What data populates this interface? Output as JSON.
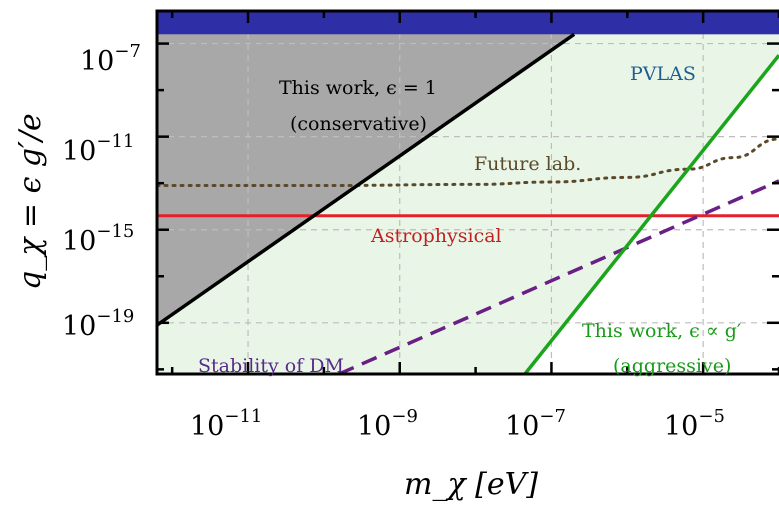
{
  "chart_data": {
    "type": "area",
    "xlabel": "m_χ [eV]",
    "ylabel": "q_χ = ϵ g′/e",
    "x_scale": "log",
    "y_scale": "log",
    "xlim_log10": [
      -12.2,
      -4.0
    ],
    "ylim_log10": [
      -21.2,
      -5.6
    ],
    "grid": true,
    "x_ticks": [
      {
        "base": "10",
        "exp": "−11",
        "log10": -11
      },
      {
        "base": "10",
        "exp": "−9",
        "log10": -9
      },
      {
        "base": "10",
        "exp": "−7",
        "log10": -7
      },
      {
        "base": "10",
        "exp": "−5",
        "log10": -5
      }
    ],
    "y_ticks": [
      {
        "base": "10",
        "exp": "−7",
        "log10": -7
      },
      {
        "base": "10",
        "exp": "−11",
        "log10": -11
      },
      {
        "base": "10",
        "exp": "−15",
        "log10": -15
      },
      {
        "base": "10",
        "exp": "−19",
        "log10": -19
      }
    ],
    "series": [
      {
        "name": "PVLAS",
        "style": "filled band",
        "color": "#2e2ea6",
        "log10_y_lower": -6.6
      },
      {
        "name": "This work, ϵ = 1 (conservative)",
        "style": "solid line, gray fill above",
        "color": "#000000",
        "points_log10": [
          [
            -12.2,
            -19.1
          ],
          [
            -6.7,
            -6.6
          ]
        ]
      },
      {
        "name": "Future lab.",
        "style": "dotted",
        "color": "#5a4a2a",
        "points_log10": [
          [
            -12.2,
            -13.1
          ],
          [
            -10.0,
            -13.1
          ],
          [
            -8.0,
            -13.05
          ],
          [
            -7.0,
            -12.95
          ],
          [
            -6.0,
            -12.75
          ],
          [
            -5.2,
            -12.4
          ],
          [
            -4.6,
            -11.9
          ],
          [
            -4.0,
            -11.1
          ]
        ]
      },
      {
        "name": "Astrophysical",
        "style": "solid line",
        "color": "#e5202a",
        "points_log10": [
          [
            -12.2,
            -14.4
          ],
          [
            -4.0,
            -14.4
          ]
        ]
      },
      {
        "name": "This work, ϵ ∝ g′ (aggressive)",
        "style": "solid line, light green fill to the left",
        "color": "#1aa51a",
        "points_log10": [
          [
            -7.35,
            -21.2
          ],
          [
            -4.0,
            -7.5
          ]
        ]
      },
      {
        "name": "Stability of DM",
        "style": "dashed",
        "color": "#6a1f86",
        "points_log10": [
          [
            -9.8,
            -21.2
          ],
          [
            -4.0,
            -12.9
          ]
        ]
      }
    ],
    "annotations": [
      {
        "text": "PVLAS",
        "color": "#1f5f8f"
      },
      {
        "text": "This work, ϵ = 1",
        "color": "#000000"
      },
      {
        "text": "(conservative)",
        "color": "#000000"
      },
      {
        "text": "Future lab.",
        "color": "#5a4a2a"
      },
      {
        "text": "Astrophysical",
        "color": "#c0201f"
      },
      {
        "text": "This work, ϵ ∝ g′",
        "color": "#1a9a1a"
      },
      {
        "text": "(aggressive)",
        "color": "#1a9a1a"
      },
      {
        "text": "Stability of DM",
        "color": "#5a2a8a"
      }
    ],
    "colors": {
      "pvlas_fill": "#2e2ea6",
      "conservative_fill": "#a8a8a8",
      "aggressive_fill": "#e9f6e7",
      "grid": "#bdbdbd"
    }
  }
}
